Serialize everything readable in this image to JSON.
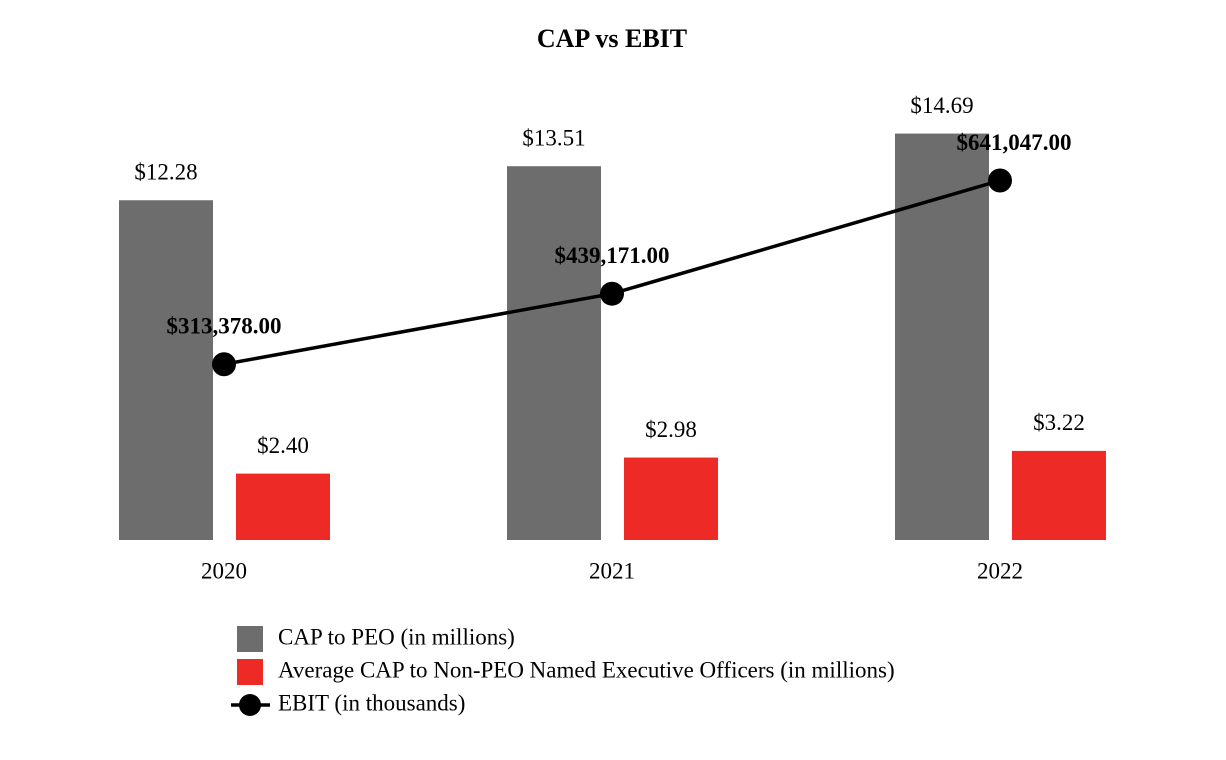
{
  "chart_data": {
    "type": "bar",
    "title": "CAP vs EBIT",
    "categories": [
      "2020",
      "2021",
      "2022"
    ],
    "series": [
      {
        "name": "CAP to PEO (in millions)",
        "color": "#6d6d6d",
        "values": [
          12.28,
          13.51,
          14.69
        ],
        "value_labels": [
          "$12.28",
          "$13.51",
          "$14.69"
        ]
      },
      {
        "name": "Average CAP to Non-PEO Named Executive Officers (in millions)",
        "color": "#ee2a27",
        "values": [
          2.4,
          2.98,
          3.22
        ],
        "value_labels": [
          "$2.40",
          "$2.98",
          "$3.22"
        ]
      },
      {
        "name": "EBIT (in thousands)",
        "type": "line",
        "axis": "y2",
        "color": "#000000",
        "values": [
          313378,
          439171,
          641047
        ],
        "value_labels": [
          "$313,378.00",
          "$439,171.00",
          "$641,047.00"
        ]
      }
    ],
    "ylim": [
      0,
      15
    ],
    "y2lim": [
      0,
      740000
    ]
  }
}
